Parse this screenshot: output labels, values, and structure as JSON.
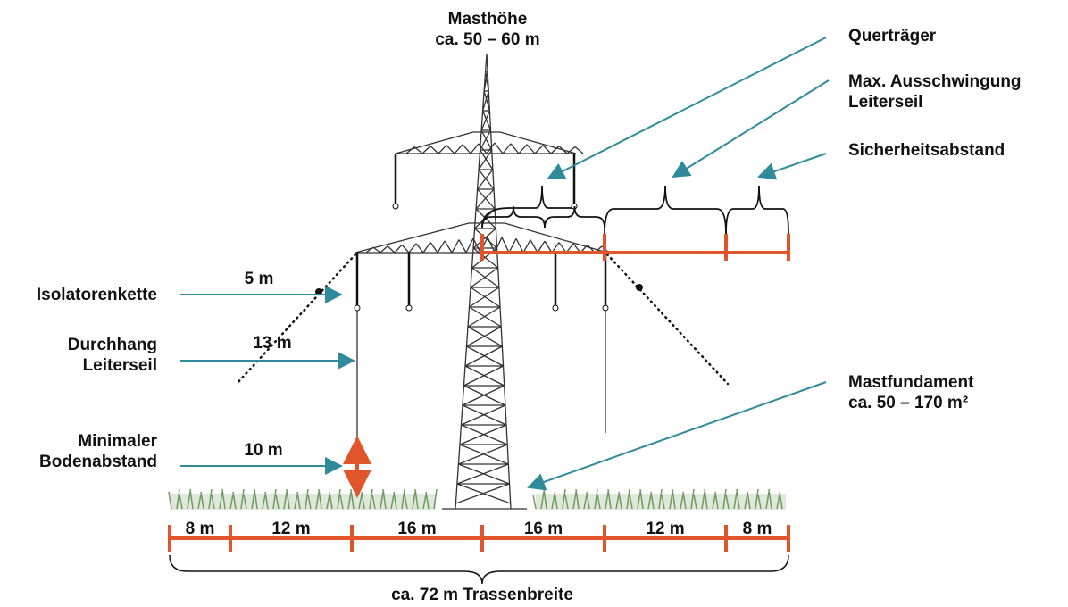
{
  "mast_height": {
    "lines": [
      "Masthöhe",
      "ca. 50 – 60 m"
    ]
  },
  "right_labels": [
    {
      "lines": [
        "Querträger"
      ]
    },
    {
      "lines": [
        "Max. Ausschwingung",
        "Leiterseil"
      ]
    },
    {
      "lines": [
        "Sicherheitsabstand"
      ]
    }
  ],
  "left_labels": [
    {
      "lines": [
        "Isolatorenkette"
      ],
      "measure": "5 m"
    },
    {
      "lines": [
        "Durchhang",
        "Leiterseil"
      ],
      "measure": "13 m"
    },
    {
      "lines": [
        "Minimaler",
        "Bodenabstand"
      ],
      "measure": "10 m"
    }
  ],
  "foundation": {
    "lines": [
      "Mastfundament",
      "ca. 50 – 170 m²"
    ]
  },
  "segments": [
    "8 m",
    "12 m",
    "16 m",
    "16 m",
    "12 m",
    "8 m"
  ],
  "total": "ca. 72 m Trassenbreite"
}
